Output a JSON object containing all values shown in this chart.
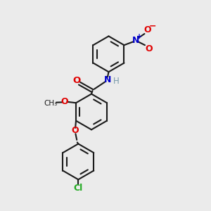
{
  "bg_color": "#ebebeb",
  "bond_color": "#1a1a1a",
  "O_color": "#e00000",
  "N_color": "#0000cc",
  "Cl_color": "#22aa22",
  "H_color": "#7799aa",
  "line_width": 1.5,
  "figsize": [
    3.0,
    3.0
  ],
  "dpi": 100,
  "xlim": [
    0,
    10
  ],
  "ylim": [
    0,
    10
  ]
}
